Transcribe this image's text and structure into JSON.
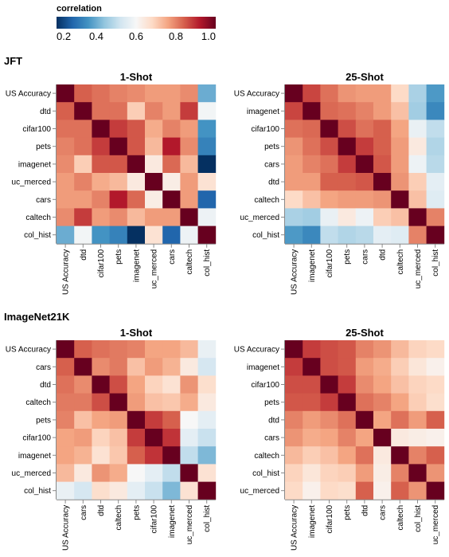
{
  "legend": {
    "title": "correlation",
    "domain": [
      0.2,
      1.0
    ],
    "ticks": [
      "0.2",
      "0.4",
      "0.6",
      "0.8",
      "1.0"
    ],
    "tick_values": [
      0.2,
      0.4,
      0.6,
      0.8,
      1.0
    ]
  },
  "colors": {
    "palette": [
      "#053061",
      "#2166ac",
      "#4393c3",
      "#92c5de",
      "#d1e5f0",
      "#f7f7f7",
      "#fddbc7",
      "#f4a582",
      "#d6604d",
      "#b2182b",
      "#67001f"
    ],
    "palette_name": "redblue"
  },
  "chart_data": [
    {
      "type": "heatmap",
      "group": "JFT",
      "title": "1-Shot",
      "labels": [
        "US Accuracy",
        "dtd",
        "cifar100",
        "pets",
        "imagenet",
        "uc_merced",
        "cars",
        "caltech",
        "col_hist"
      ],
      "matrix": [
        [
          1.0,
          0.84,
          0.82,
          0.8,
          0.79,
          0.77,
          0.77,
          0.79,
          0.4
        ],
        [
          0.84,
          1.0,
          0.82,
          0.82,
          0.7,
          0.8,
          0.77,
          0.88,
          0.59
        ],
        [
          0.82,
          0.82,
          1.0,
          0.88,
          0.85,
          0.75,
          0.8,
          0.77,
          0.36
        ],
        [
          0.8,
          0.82,
          0.88,
          1.0,
          0.85,
          0.73,
          0.92,
          0.79,
          0.33
        ],
        [
          0.79,
          0.7,
          0.85,
          0.85,
          1.0,
          0.64,
          0.83,
          0.73,
          0.13
        ],
        [
          0.77,
          0.8,
          0.75,
          0.73,
          0.64,
          1.0,
          0.63,
          0.77,
          0.66
        ],
        [
          0.77,
          0.77,
          0.8,
          0.92,
          0.83,
          0.63,
          1.0,
          0.77,
          0.28
        ],
        [
          0.79,
          0.88,
          0.77,
          0.79,
          0.73,
          0.77,
          0.77,
          1.0,
          0.58
        ],
        [
          0.4,
          0.59,
          0.36,
          0.33,
          0.13,
          0.66,
          0.28,
          0.58,
          1.0
        ]
      ]
    },
    {
      "type": "heatmap",
      "group": "JFT",
      "title": "25-Shot",
      "labels": [
        "US Accuracy",
        "imagenet",
        "cifar100",
        "pets",
        "cars",
        "dtd",
        "caltech",
        "uc_merced",
        "col_hist"
      ],
      "matrix": [
        [
          1.0,
          0.87,
          0.82,
          0.78,
          0.77,
          0.77,
          0.68,
          0.47,
          0.37
        ],
        [
          0.87,
          1.0,
          0.83,
          0.82,
          0.8,
          0.77,
          0.72,
          0.46,
          0.34
        ],
        [
          0.82,
          0.83,
          1.0,
          0.86,
          0.82,
          0.84,
          0.76,
          0.57,
          0.5
        ],
        [
          0.78,
          0.82,
          0.86,
          1.0,
          0.88,
          0.84,
          0.77,
          0.64,
          0.48
        ],
        [
          0.77,
          0.8,
          0.82,
          0.88,
          1.0,
          0.85,
          0.77,
          0.58,
          0.49
        ],
        [
          0.77,
          0.77,
          0.84,
          0.84,
          0.85,
          1.0,
          0.78,
          0.7,
          0.56
        ],
        [
          0.68,
          0.72,
          0.76,
          0.77,
          0.77,
          0.78,
          1.0,
          0.72,
          0.55
        ],
        [
          0.47,
          0.46,
          0.57,
          0.64,
          0.58,
          0.7,
          0.72,
          1.0,
          0.8
        ],
        [
          0.37,
          0.34,
          0.5,
          0.48,
          0.49,
          0.56,
          0.55,
          0.8,
          1.0
        ]
      ]
    },
    {
      "type": "heatmap",
      "group": "ImageNet21K",
      "title": "1-Shot",
      "labels": [
        "US Accuracy",
        "cars",
        "dtd",
        "caltech",
        "pets",
        "cifar100",
        "imagenet",
        "uc_merced",
        "col_hist"
      ],
      "matrix": [
        [
          1.0,
          0.84,
          0.82,
          0.81,
          0.8,
          0.76,
          0.76,
          0.73,
          0.57
        ],
        [
          0.84,
          1.0,
          0.79,
          0.81,
          0.72,
          0.77,
          0.74,
          0.64,
          0.53
        ],
        [
          0.82,
          0.79,
          1.0,
          0.86,
          0.76,
          0.69,
          0.66,
          0.78,
          0.67
        ],
        [
          0.81,
          0.81,
          0.86,
          1.0,
          0.77,
          0.72,
          0.71,
          0.75,
          0.64
        ],
        [
          0.8,
          0.72,
          0.76,
          0.77,
          1.0,
          0.88,
          0.84,
          0.6,
          0.56
        ],
        [
          0.76,
          0.77,
          0.69,
          0.72,
          0.88,
          1.0,
          0.89,
          0.56,
          0.51
        ],
        [
          0.76,
          0.74,
          0.66,
          0.71,
          0.84,
          0.89,
          1.0,
          0.5,
          0.42
        ],
        [
          0.73,
          0.64,
          0.78,
          0.75,
          0.6,
          0.56,
          0.5,
          1.0,
          0.66
        ],
        [
          0.57,
          0.53,
          0.67,
          0.64,
          0.56,
          0.51,
          0.42,
          0.66,
          1.0
        ]
      ]
    },
    {
      "type": "heatmap",
      "group": "ImageNet21K",
      "title": "25-Shot",
      "labels": [
        "US Accuracy",
        "imagenet",
        "cifar100",
        "pets",
        "dtd",
        "cars",
        "caltech",
        "col_hist",
        "uc_merced"
      ],
      "matrix": [
        [
          1.0,
          0.88,
          0.86,
          0.85,
          0.8,
          0.78,
          0.73,
          0.69,
          0.68
        ],
        [
          0.88,
          1.0,
          0.86,
          0.85,
          0.77,
          0.75,
          0.7,
          0.65,
          0.62
        ],
        [
          0.86,
          0.86,
          1.0,
          0.88,
          0.79,
          0.76,
          0.72,
          0.69,
          0.68
        ],
        [
          0.85,
          0.85,
          0.88,
          1.0,
          0.82,
          0.8,
          0.76,
          0.7,
          0.67
        ],
        [
          0.8,
          0.77,
          0.79,
          0.82,
          1.0,
          0.76,
          0.82,
          0.77,
          0.84
        ],
        [
          0.78,
          0.75,
          0.76,
          0.8,
          0.76,
          1.0,
          0.64,
          0.63,
          0.62
        ],
        [
          0.73,
          0.7,
          0.72,
          0.76,
          0.82,
          0.64,
          1.0,
          0.8,
          0.84
        ],
        [
          0.69,
          0.65,
          0.69,
          0.7,
          0.77,
          0.63,
          0.8,
          1.0,
          0.78
        ],
        [
          0.68,
          0.62,
          0.68,
          0.67,
          0.84,
          0.62,
          0.84,
          0.78,
          1.0
        ]
      ]
    }
  ]
}
